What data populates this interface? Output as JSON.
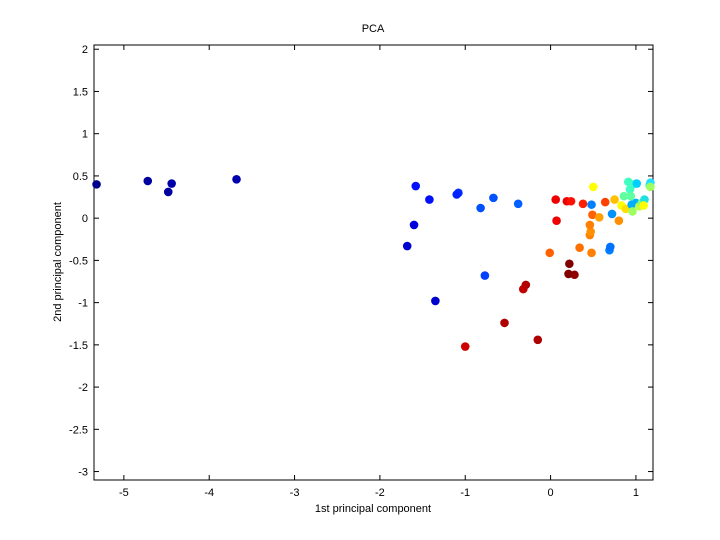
{
  "chart_data": {
    "type": "scatter",
    "title": "PCA",
    "xlabel": "1st principal component",
    "ylabel": "2nd principal component",
    "xlim": [
      -5.35,
      1.2
    ],
    "ylim": [
      -3.1,
      2.05
    ],
    "xticks": [
      -5,
      -4,
      -3,
      -2,
      -1,
      0,
      1
    ],
    "xtick_labels": [
      "-5",
      "-4",
      "-3",
      "-2",
      "-1",
      "0",
      "1"
    ],
    "yticks": [
      2,
      1.5,
      1,
      0.5,
      0,
      -0.5,
      -1,
      -1.5,
      -2,
      -2.5,
      -3
    ],
    "ytick_labels": [
      "2",
      "1.5",
      "1",
      "0.5",
      "0",
      "-0.5",
      "-1",
      "-1.5",
      "-2",
      "-2.5",
      "-3"
    ],
    "grid": false,
    "colormap": "jet",
    "points": [
      {
        "x": -5.32,
        "y": 0.4,
        "color": "#00008f"
      },
      {
        "x": -4.72,
        "y": 0.44,
        "color": "#00009f"
      },
      {
        "x": -4.48,
        "y": 0.31,
        "color": "#00009f"
      },
      {
        "x": -4.44,
        "y": 0.41,
        "color": "#0000a8"
      },
      {
        "x": -3.68,
        "y": 0.46,
        "color": "#0000af"
      },
      {
        "x": -1.58,
        "y": 0.38,
        "color": "#0010ff"
      },
      {
        "x": -1.42,
        "y": 0.22,
        "color": "#0010ff"
      },
      {
        "x": -1.6,
        "y": -0.08,
        "color": "#0000df"
      },
      {
        "x": -1.68,
        "y": -0.33,
        "color": "#0000cf"
      },
      {
        "x": -1.35,
        "y": -0.98,
        "color": "#0000cf"
      },
      {
        "x": -1.08,
        "y": 0.3,
        "color": "#0030ff"
      },
      {
        "x": -1.1,
        "y": 0.28,
        "color": "#0020ff"
      },
      {
        "x": -0.82,
        "y": 0.12,
        "color": "#0050ff"
      },
      {
        "x": -0.67,
        "y": 0.24,
        "color": "#0050ff"
      },
      {
        "x": -0.38,
        "y": 0.17,
        "color": "#0060ff"
      },
      {
        "x": -0.77,
        "y": -0.68,
        "color": "#0040ff"
      },
      {
        "x": -1.0,
        "y": -1.52,
        "color": "#cf0000"
      },
      {
        "x": -0.54,
        "y": -1.24,
        "color": "#af0000"
      },
      {
        "x": -0.32,
        "y": -0.84,
        "color": "#bf0000"
      },
      {
        "x": -0.29,
        "y": -0.79,
        "color": "#b00000"
      },
      {
        "x": -0.15,
        "y": -1.44,
        "color": "#af0000"
      },
      {
        "x": 0.21,
        "y": -0.66,
        "color": "#800000"
      },
      {
        "x": 0.28,
        "y": -0.67,
        "color": "#8f0000"
      },
      {
        "x": 0.22,
        "y": -0.54,
        "color": "#800000"
      },
      {
        "x": 0.06,
        "y": 0.22,
        "color": "#ef0000"
      },
      {
        "x": 0.07,
        "y": -0.03,
        "color": "#ef0000"
      },
      {
        "x": 0.19,
        "y": 0.2,
        "color": "#ef0000"
      },
      {
        "x": 0.24,
        "y": 0.2,
        "color": "#ff1000"
      },
      {
        "x": 0.38,
        "y": 0.17,
        "color": "#ff2000"
      },
      {
        "x": -0.01,
        "y": -0.41,
        "color": "#ff6000"
      },
      {
        "x": 0.34,
        "y": -0.35,
        "color": "#ff7000"
      },
      {
        "x": 0.48,
        "y": -0.41,
        "color": "#ff8000"
      },
      {
        "x": 0.46,
        "y": -0.2,
        "color": "#ff8000"
      },
      {
        "x": 0.47,
        "y": -0.16,
        "color": "#ff9000"
      },
      {
        "x": 0.46,
        "y": -0.08,
        "color": "#ff8000"
      },
      {
        "x": 0.49,
        "y": 0.04,
        "color": "#ff6000"
      },
      {
        "x": 0.57,
        "y": 0.01,
        "color": "#ffa000"
      },
      {
        "x": 0.64,
        "y": 0.19,
        "color": "#ff4000"
      },
      {
        "x": 0.48,
        "y": 0.16,
        "color": "#0080ff"
      },
      {
        "x": 0.5,
        "y": 0.37,
        "color": "#ffff00"
      },
      {
        "x": 0.69,
        "y": -0.38,
        "color": "#0080ff"
      },
      {
        "x": 0.7,
        "y": -0.34,
        "color": "#0070ff"
      },
      {
        "x": 0.72,
        "y": 0.05,
        "color": "#0090ff"
      },
      {
        "x": 0.75,
        "y": 0.22,
        "color": "#ffc000"
      },
      {
        "x": 0.8,
        "y": -0.03,
        "color": "#ff9000"
      },
      {
        "x": 0.83,
        "y": 0.15,
        "color": "#ffff00"
      },
      {
        "x": 0.86,
        "y": 0.26,
        "color": "#60ffa0"
      },
      {
        "x": 0.88,
        "y": 0.11,
        "color": "#ffe000"
      },
      {
        "x": 0.91,
        "y": 0.43,
        "color": "#40ffc0"
      },
      {
        "x": 0.93,
        "y": 0.34,
        "color": "#40ffc0"
      },
      {
        "x": 0.94,
        "y": 0.26,
        "color": "#60ff9f"
      },
      {
        "x": 0.95,
        "y": 0.16,
        "color": "#00b0ff"
      },
      {
        "x": 0.96,
        "y": 0.08,
        "color": "#9fff60"
      },
      {
        "x": 0.97,
        "y": 0.4,
        "color": "#40ffc0"
      },
      {
        "x": 1.0,
        "y": 0.18,
        "color": "#00b0ff"
      },
      {
        "x": 1.01,
        "y": 0.41,
        "color": "#00d0ff"
      },
      {
        "x": 1.04,
        "y": 0.14,
        "color": "#c0ff40"
      },
      {
        "x": 1.07,
        "y": 0.18,
        "color": "#80ff80"
      },
      {
        "x": 1.1,
        "y": 0.22,
        "color": "#20e0e0"
      },
      {
        "x": 1.09,
        "y": 0.15,
        "color": "#ffff00"
      },
      {
        "x": 1.16,
        "y": 0.39,
        "color": "#40ffc0"
      },
      {
        "x": 1.17,
        "y": 0.42,
        "color": "#20e0ff"
      },
      {
        "x": 1.17,
        "y": 0.37,
        "color": "#a0ff60"
      }
    ]
  }
}
